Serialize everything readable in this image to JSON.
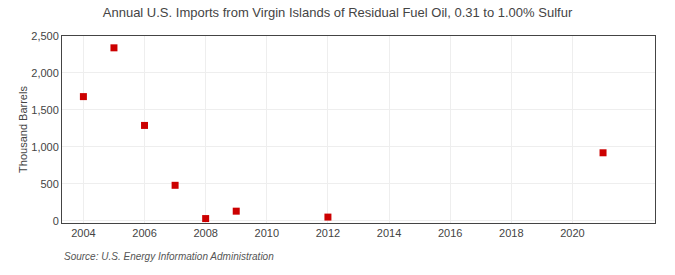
{
  "chart_data": {
    "type": "scatter",
    "title": "Annual U.S. Imports from Virgin Islands of Residual Fuel Oil, 0.31 to 1.00% Sulfur",
    "ylabel": "Thousand Barrels",
    "annotations": [
      "Source: U.S. Energy Information Administration"
    ],
    "x": [
      2004,
      2005,
      2006,
      2007,
      2008,
      2009,
      2012,
      2021
    ],
    "values": [
      1680,
      2340,
      1290,
      480,
      30,
      130,
      50,
      920
    ],
    "color": "#cc0000",
    "marker": "square",
    "xlim": [
      2003.3,
      2022.7
    ],
    "xticks": [
      2004,
      2006,
      2008,
      2010,
      2012,
      2014,
      2016,
      2018,
      2020
    ],
    "ylim": [
      -30,
      2500
    ],
    "yticks": [
      0,
      500,
      {
        "value": 1000,
        "label": "1,000"
      },
      {
        "value": 1500,
        "label": "1,500"
      },
      {
        "value": 2000,
        "label": "2,000"
      },
      {
        "value": 2500,
        "label": "2,500"
      }
    ],
    "grid": true
  }
}
